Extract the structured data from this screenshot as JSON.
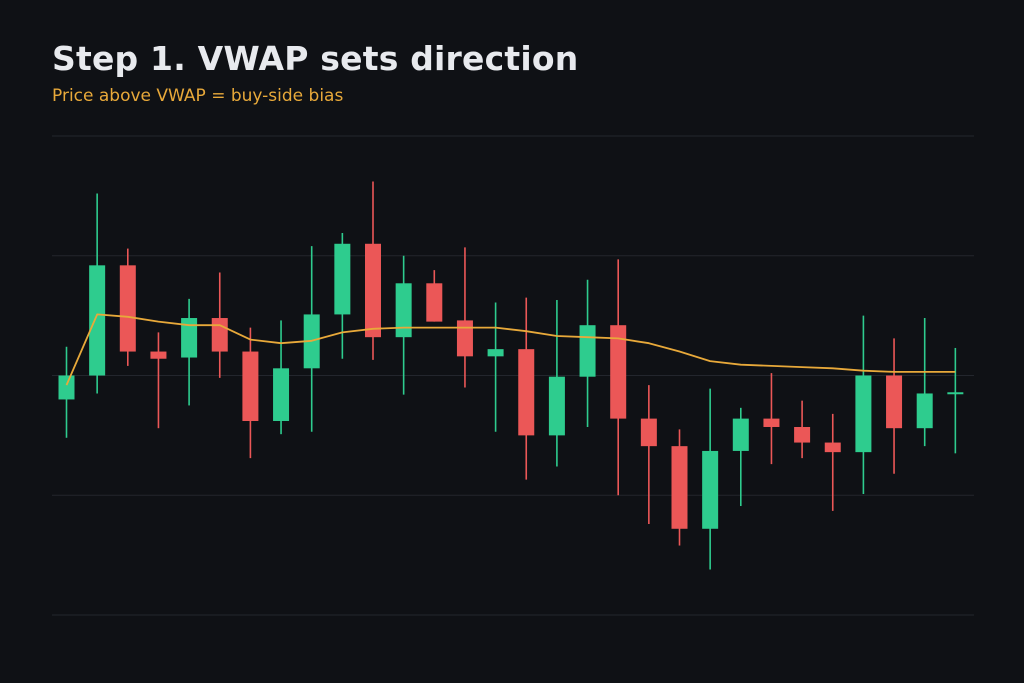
{
  "title": "Step 1. VWAP sets direction",
  "subtitle": "Price above VWAP = buy-side bias",
  "colors": {
    "background": "#0f1115",
    "up": "#2ecc8e",
    "down": "#eb5757",
    "vwap": "#e8a93a",
    "grid": "#23262d",
    "title": "#e8eaee",
    "subtitle": "#e8a93a"
  },
  "chart_data": {
    "type": "candlestick",
    "title": "Step 1. VWAP sets direction",
    "subtitle": "Price above VWAP = buy-side bias",
    "xlabel": "",
    "ylabel": "",
    "ylim": [
      -2,
      2
    ],
    "grid": "horizontal",
    "legend": "none",
    "candles": [
      {
        "o": -0.2,
        "h": 0.24,
        "l": -0.52,
        "c": 0.0
      },
      {
        "o": 0.0,
        "h": 1.52,
        "l": -0.15,
        "c": 0.92
      },
      {
        "o": 0.92,
        "h": 1.06,
        "l": 0.08,
        "c": 0.2
      },
      {
        "o": 0.2,
        "h": 0.36,
        "l": -0.44,
        "c": 0.14
      },
      {
        "o": 0.15,
        "h": 0.64,
        "l": -0.25,
        "c": 0.48
      },
      {
        "o": 0.48,
        "h": 0.86,
        "l": -0.02,
        "c": 0.2
      },
      {
        "o": 0.2,
        "h": 0.4,
        "l": -0.69,
        "c": -0.38
      },
      {
        "o": -0.38,
        "h": 0.46,
        "l": -0.49,
        "c": 0.06
      },
      {
        "o": 0.06,
        "h": 1.08,
        "l": -0.47,
        "c": 0.51
      },
      {
        "o": 0.51,
        "h": 1.19,
        "l": 0.14,
        "c": 1.1
      },
      {
        "o": 1.1,
        "h": 1.62,
        "l": 0.13,
        "c": 0.32
      },
      {
        "o": 0.32,
        "h": 1.0,
        "l": -0.16,
        "c": 0.77
      },
      {
        "o": 0.77,
        "h": 0.88,
        "l": 0.45,
        "c": 0.45
      },
      {
        "o": 0.46,
        "h": 1.07,
        "l": -0.1,
        "c": 0.16
      },
      {
        "o": 0.16,
        "h": 0.61,
        "l": -0.47,
        "c": 0.22
      },
      {
        "o": 0.22,
        "h": 0.65,
        "l": -0.87,
        "c": -0.5
      },
      {
        "o": -0.5,
        "h": 0.63,
        "l": -0.76,
        "c": -0.01
      },
      {
        "o": -0.01,
        "h": 0.8,
        "l": -0.43,
        "c": 0.42
      },
      {
        "o": 0.42,
        "h": 0.97,
        "l": -1.0,
        "c": -0.36
      },
      {
        "o": -0.36,
        "h": -0.08,
        "l": -1.24,
        "c": -0.59
      },
      {
        "o": -0.59,
        "h": -0.45,
        "l": -1.42,
        "c": -1.28
      },
      {
        "o": -1.28,
        "h": -0.11,
        "l": -1.62,
        "c": -0.63
      },
      {
        "o": -0.63,
        "h": -0.27,
        "l": -1.09,
        "c": -0.36
      },
      {
        "o": -0.36,
        "h": 0.02,
        "l": -0.74,
        "c": -0.43
      },
      {
        "o": -0.43,
        "h": -0.21,
        "l": -0.69,
        "c": -0.56
      },
      {
        "o": -0.56,
        "h": -0.32,
        "l": -1.13,
        "c": -0.64
      },
      {
        "o": -0.64,
        "h": 0.5,
        "l": -0.99,
        "c": 0.0
      },
      {
        "o": 0.0,
        "h": 0.31,
        "l": -0.82,
        "c": -0.44
      },
      {
        "o": -0.44,
        "h": 0.48,
        "l": -0.59,
        "c": -0.15
      },
      {
        "o": -0.15,
        "h": 0.23,
        "l": -0.65,
        "c": -0.14
      }
    ],
    "vwap": [
      -0.08,
      0.51,
      0.49,
      0.45,
      0.42,
      0.42,
      0.3,
      0.27,
      0.29,
      0.36,
      0.39,
      0.4,
      0.4,
      0.4,
      0.4,
      0.37,
      0.33,
      0.32,
      0.31,
      0.27,
      0.2,
      0.12,
      0.09,
      0.08,
      0.07,
      0.06,
      0.04,
      0.03,
      0.03,
      0.03
    ]
  }
}
